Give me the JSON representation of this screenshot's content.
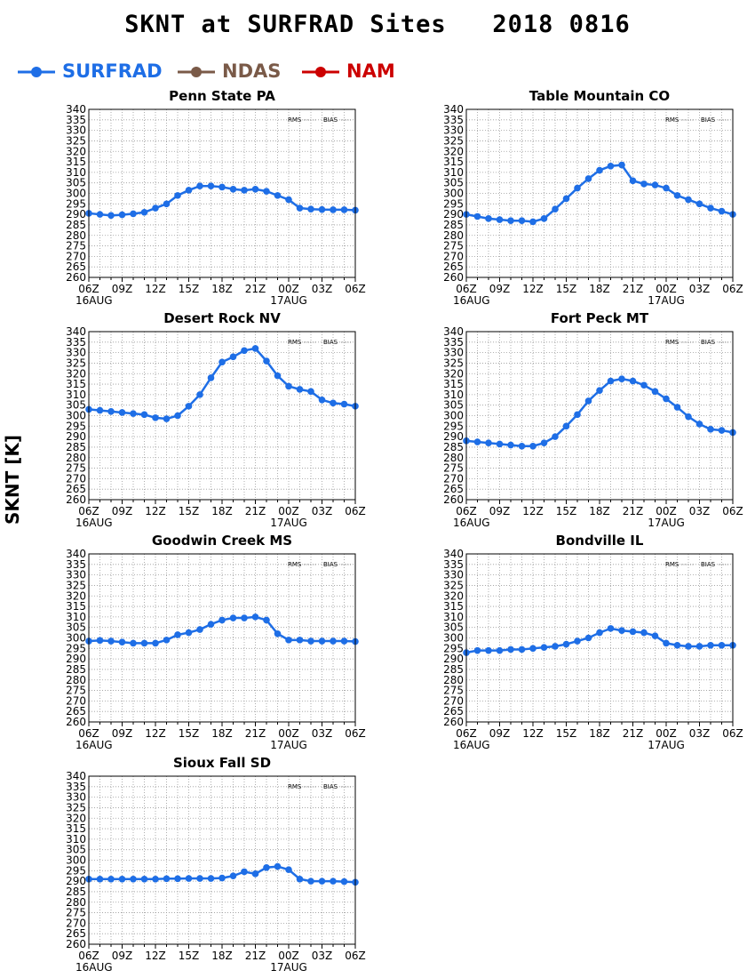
{
  "page": {
    "title": "SKNT at SURFRAD Sites   2018 0816",
    "ylabel": "SKNT [K]"
  },
  "legend": [
    {
      "label": "SURFRAD",
      "color": "#1e6ee6"
    },
    {
      "label": "NDAS",
      "color": "#7a5a48"
    },
    {
      "label": "NAM",
      "color": "#cc0000"
    }
  ],
  "panel_text": {
    "rms": "RMS",
    "bias": "BIAS"
  },
  "chart_data": [
    {
      "type": "line",
      "title": "Penn State PA",
      "ylim": [
        260,
        340
      ],
      "yticks": [
        260,
        265,
        270,
        275,
        280,
        285,
        290,
        295,
        300,
        305,
        310,
        315,
        320,
        325,
        330,
        335,
        340
      ],
      "xlim": [
        0,
        24
      ],
      "xtick_labels": [
        "06Z",
        "09Z",
        "12Z",
        "15Z",
        "18Z",
        "21Z",
        "00Z",
        "03Z",
        "06Z"
      ],
      "xdate_labels": [
        "16AUG",
        "17AUG"
      ],
      "series": [
        {
          "color": "#1e6ee6",
          "x": [
            0,
            1,
            2,
            3,
            4,
            5,
            6,
            7,
            8,
            9,
            10,
            11,
            12,
            13,
            14,
            15,
            16,
            17,
            18,
            19,
            20,
            21,
            22,
            23,
            24
          ],
          "values": [
            290.5,
            290,
            289.5,
            289.8,
            290.3,
            291,
            293,
            295,
            299,
            301.5,
            303.5,
            303.5,
            303,
            302,
            301.5,
            302,
            301,
            299,
            297,
            293,
            292.5,
            292.3,
            292.2,
            292.2,
            292
          ]
        }
      ]
    },
    {
      "type": "line",
      "title": "Table Mountain CO",
      "ylim": [
        260,
        340
      ],
      "yticks": [
        260,
        265,
        270,
        275,
        280,
        285,
        290,
        295,
        300,
        305,
        310,
        315,
        320,
        325,
        330,
        335,
        340
      ],
      "xlim": [
        0,
        24
      ],
      "xtick_labels": [
        "06Z",
        "09Z",
        "12Z",
        "15Z",
        "18Z",
        "21Z",
        "00Z",
        "03Z",
        "06Z"
      ],
      "xdate_labels": [
        "16AUG",
        "17AUG"
      ],
      "series": [
        {
          "color": "#1e6ee6",
          "x": [
            0,
            1,
            2,
            3,
            4,
            5,
            6,
            7,
            8,
            9,
            10,
            11,
            12,
            13,
            14,
            15,
            16,
            17,
            18,
            19,
            20,
            21,
            22,
            23,
            24
          ],
          "values": [
            290,
            289,
            288,
            287.5,
            287,
            287,
            286.5,
            288,
            292.5,
            297.5,
            302.5,
            307,
            311,
            313,
            313.5,
            306,
            304.5,
            304,
            302.5,
            299,
            297,
            295,
            293,
            291.5,
            290
          ]
        }
      ]
    },
    {
      "type": "line",
      "title": "Desert Rock NV",
      "ylim": [
        260,
        340
      ],
      "yticks": [
        260,
        265,
        270,
        275,
        280,
        285,
        290,
        295,
        300,
        305,
        310,
        315,
        320,
        325,
        330,
        335,
        340
      ],
      "xlim": [
        0,
        24
      ],
      "xtick_labels": [
        "06Z",
        "09Z",
        "12Z",
        "15Z",
        "18Z",
        "21Z",
        "00Z",
        "03Z",
        "06Z"
      ],
      "xdate_labels": [
        "16AUG",
        "17AUG"
      ],
      "series": [
        {
          "color": "#1e6ee6",
          "x": [
            0,
            1,
            2,
            3,
            4,
            5,
            6,
            7,
            8,
            9,
            10,
            11,
            12,
            13,
            14,
            15,
            16,
            17,
            18,
            19,
            20,
            21,
            22,
            23,
            24
          ],
          "values": [
            303,
            302.5,
            302,
            301.5,
            301,
            300.5,
            299,
            298.5,
            300,
            304.5,
            310,
            318,
            325.5,
            328,
            331,
            332,
            326,
            319,
            314,
            312.5,
            311.5,
            307.5,
            306,
            305.5,
            304.5
          ]
        }
      ]
    },
    {
      "type": "line",
      "title": "Fort Peck MT",
      "ylim": [
        260,
        340
      ],
      "yticks": [
        260,
        265,
        270,
        275,
        280,
        285,
        290,
        295,
        300,
        305,
        310,
        315,
        320,
        325,
        330,
        335,
        340
      ],
      "xlim": [
        0,
        24
      ],
      "xtick_labels": [
        "06Z",
        "09Z",
        "12Z",
        "15Z",
        "18Z",
        "21Z",
        "00Z",
        "03Z",
        "06Z"
      ],
      "xdate_labels": [
        "16AUG",
        "17AUG"
      ],
      "series": [
        {
          "color": "#1e6ee6",
          "x": [
            0,
            1,
            2,
            3,
            4,
            5,
            6,
            7,
            8,
            9,
            10,
            11,
            12,
            13,
            14,
            15,
            16,
            17,
            18,
            19,
            20,
            21,
            22,
            23,
            24
          ],
          "values": [
            288,
            287.5,
            287,
            286.5,
            286,
            285.5,
            285.5,
            287,
            290,
            295,
            300.5,
            307,
            312,
            316.5,
            317.5,
            316.5,
            314.5,
            311.5,
            308,
            304,
            299.5,
            296,
            293.5,
            293,
            292
          ]
        }
      ]
    },
    {
      "type": "line",
      "title": "Goodwin Creek MS",
      "ylim": [
        260,
        340
      ],
      "yticks": [
        260,
        265,
        270,
        275,
        280,
        285,
        290,
        295,
        300,
        305,
        310,
        315,
        320,
        325,
        330,
        335,
        340
      ],
      "xlim": [
        0,
        24
      ],
      "xtick_labels": [
        "06Z",
        "09Z",
        "12Z",
        "15Z",
        "18Z",
        "21Z",
        "00Z",
        "03Z",
        "06Z"
      ],
      "xdate_labels": [
        "16AUG",
        "17AUG"
      ],
      "series": [
        {
          "color": "#1e6ee6",
          "x": [
            0,
            1,
            2,
            3,
            4,
            5,
            6,
            7,
            8,
            9,
            10,
            11,
            12,
            13,
            14,
            15,
            16,
            17,
            18,
            19,
            20,
            21,
            22,
            23,
            24
          ],
          "values": [
            298.5,
            298.8,
            298.5,
            298,
            297.5,
            297.5,
            297.5,
            299,
            301.5,
            302.5,
            304,
            306.5,
            308.5,
            309.5,
            309.5,
            310,
            308.5,
            302,
            299,
            299,
            298.5,
            298.5,
            298.5,
            298.5,
            298.3
          ]
        }
      ]
    },
    {
      "type": "line",
      "title": "Bondville IL",
      "ylim": [
        260,
        340
      ],
      "yticks": [
        260,
        265,
        270,
        275,
        280,
        285,
        290,
        295,
        300,
        305,
        310,
        315,
        320,
        325,
        330,
        335,
        340
      ],
      "xlim": [
        0,
        24
      ],
      "xtick_labels": [
        "06Z",
        "09Z",
        "12Z",
        "15Z",
        "18Z",
        "21Z",
        "00Z",
        "03Z",
        "06Z"
      ],
      "xdate_labels": [
        "16AUG",
        "17AUG"
      ],
      "series": [
        {
          "color": "#1e6ee6",
          "x": [
            0,
            1,
            2,
            3,
            4,
            5,
            6,
            7,
            8,
            9,
            10,
            11,
            12,
            13,
            14,
            15,
            16,
            17,
            18,
            19,
            20,
            21,
            22,
            23,
            24
          ],
          "values": [
            293,
            294,
            294,
            294,
            294.5,
            294.5,
            295,
            295.5,
            296,
            297,
            298.5,
            300,
            302.5,
            304.5,
            303.5,
            303,
            302.5,
            301,
            297.5,
            296.5,
            296,
            296,
            296.5,
            296.5,
            296.5
          ]
        }
      ]
    },
    {
      "type": "line",
      "title": "Sioux Fall SD",
      "ylim": [
        260,
        340
      ],
      "yticks": [
        260,
        265,
        270,
        275,
        280,
        285,
        290,
        295,
        300,
        305,
        310,
        315,
        320,
        325,
        330,
        335,
        340
      ],
      "xlim": [
        0,
        24
      ],
      "xtick_labels": [
        "06Z",
        "09Z",
        "12Z",
        "15Z",
        "18Z",
        "21Z",
        "00Z",
        "03Z",
        "06Z"
      ],
      "xdate_labels": [
        "16AUG",
        "17AUG"
      ],
      "series": [
        {
          "color": "#1e6ee6",
          "x": [
            0,
            1,
            2,
            3,
            4,
            5,
            6,
            7,
            8,
            9,
            10,
            11,
            12,
            13,
            14,
            15,
            16,
            17,
            18,
            19,
            20,
            21,
            22,
            23,
            24
          ],
          "values": [
            291,
            291,
            291,
            291,
            291,
            291,
            291,
            291.2,
            291.2,
            291.3,
            291.3,
            291.3,
            291.5,
            292.5,
            294.5,
            293.5,
            296.5,
            297,
            295.5,
            291,
            290,
            290,
            290,
            289.8,
            289.5
          ]
        }
      ]
    }
  ]
}
